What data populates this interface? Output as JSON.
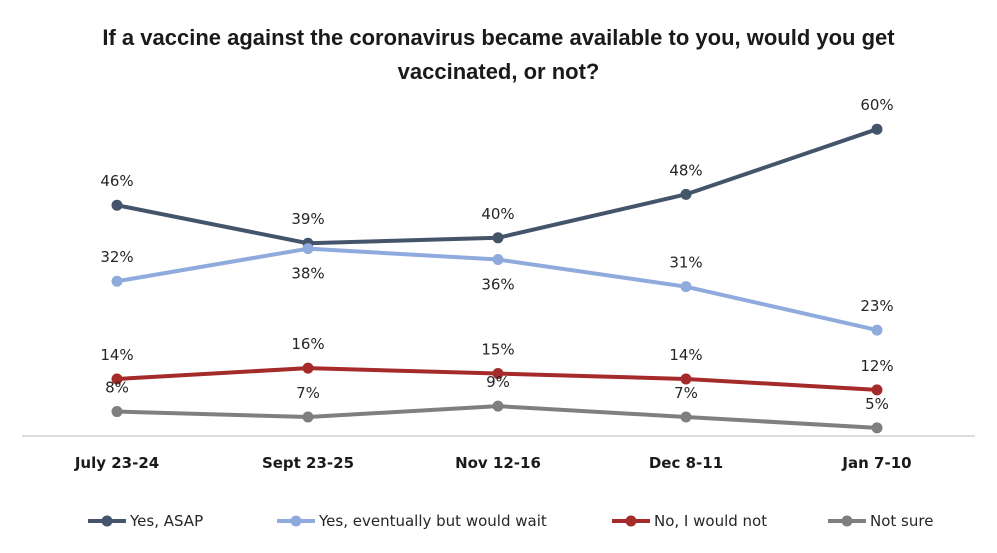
{
  "chart_data": {
    "type": "line",
    "title_line1": "If a vaccine against the coronavirus became available to you, would you get",
    "title_line2": "vaccinated, or not?",
    "categories": [
      "July 23-24",
      "Sept 23-25",
      "Nov 12-16",
      "Dec 8-11",
      "Jan 7-10"
    ],
    "ylim": [
      0,
      60
    ],
    "grid": false,
    "legend_position": "bottom",
    "series": [
      {
        "name": "Yes, ASAP",
        "color": "#44546a",
        "values": [
          46,
          39,
          40,
          48,
          60
        ],
        "labels": [
          "46%",
          "39%",
          "40%",
          "48%",
          "60%"
        ]
      },
      {
        "name": "Yes, eventually but would wait",
        "color": "#8faadc",
        "values": [
          32,
          38,
          36,
          31,
          23
        ],
        "labels": [
          "32%",
          "38%",
          "36%",
          "31%",
          "23%"
        ]
      },
      {
        "name": "No, I would not",
        "color": "#a52a2a",
        "values": [
          14,
          16,
          15,
          14,
          12
        ],
        "labels": [
          "14%",
          "16%",
          "15%",
          "14%",
          "12%"
        ]
      },
      {
        "name": "Not sure",
        "color": "#7f7f7f",
        "values": [
          8,
          7,
          9,
          7,
          5
        ],
        "labels": [
          "8%",
          "7%",
          "9%",
          "7%",
          "5%"
        ]
      }
    ]
  }
}
